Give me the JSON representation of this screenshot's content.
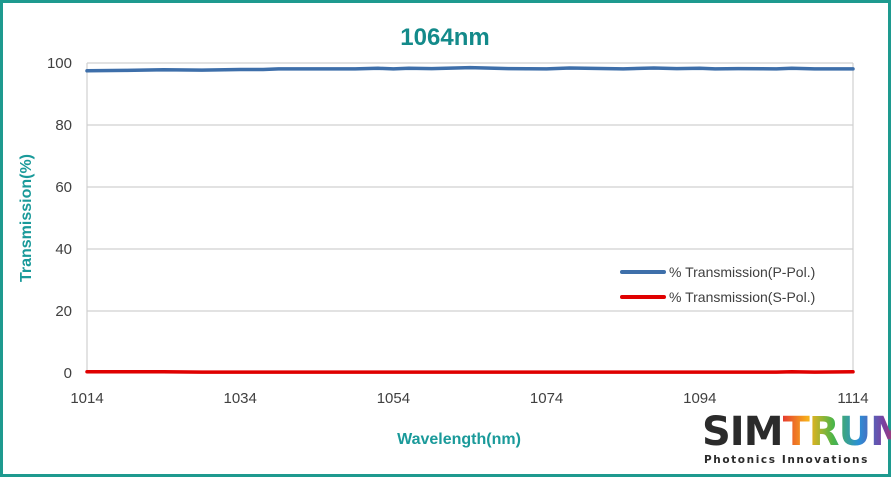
{
  "chart_data": {
    "type": "line",
    "title": "1064nm",
    "xlabel": "Wavelength(nm)",
    "ylabel": "Transmission(%)",
    "xlim": [
      1014,
      1114
    ],
    "ylim": [
      0,
      100
    ],
    "x_ticks": [
      "1014",
      "1034",
      "1054",
      "1074",
      "1094",
      "1114"
    ],
    "y_ticks": [
      "0",
      "20",
      "40",
      "60",
      "80",
      "100"
    ],
    "grid": true,
    "legend_position": "lower-right",
    "x": [
      1014,
      1019,
      1024,
      1029,
      1034,
      1037,
      1039,
      1044,
      1049,
      1052,
      1054,
      1056,
      1059,
      1064,
      1066,
      1069,
      1074,
      1077,
      1079,
      1084,
      1088,
      1091,
      1094,
      1096,
      1099,
      1104,
      1106,
      1109,
      1114
    ],
    "series": [
      {
        "name": "% Transmission(P-Pol.)",
        "color": "#3e6faa",
        "values": [
          97.5,
          97.6,
          97.8,
          97.7,
          97.9,
          97.9,
          98.1,
          98.1,
          98.1,
          98.3,
          98.1,
          98.3,
          98.2,
          98.5,
          98.4,
          98.2,
          98.1,
          98.4,
          98.3,
          98.1,
          98.4,
          98.2,
          98.3,
          98.1,
          98.2,
          98.1,
          98.3,
          98.1,
          98.1
        ]
      },
      {
        "name": "% Transmission(S-Pol.)",
        "color": "#e00000",
        "values": [
          0.4,
          0.4,
          0.4,
          0.3,
          0.3,
          0.3,
          0.3,
          0.3,
          0.3,
          0.3,
          0.3,
          0.3,
          0.3,
          0.3,
          0.3,
          0.3,
          0.3,
          0.3,
          0.3,
          0.3,
          0.3,
          0.3,
          0.3,
          0.3,
          0.3,
          0.3,
          0.4,
          0.3,
          0.4
        ]
      }
    ]
  },
  "logo": {
    "brand_sim": "SIM",
    "brand_trum": "TRUM",
    "tagline": "Photonics Innovations"
  }
}
